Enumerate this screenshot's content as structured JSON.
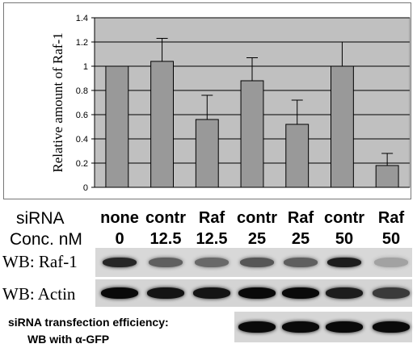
{
  "chart_data": {
    "type": "bar",
    "categories": [
      "none",
      "contr 12.5",
      "Raf 12.5",
      "contr 25",
      "Raf 25",
      "contr 50",
      "Raf 50"
    ],
    "values": [
      1.0,
      1.04,
      0.56,
      0.88,
      0.52,
      1.0,
      0.18
    ],
    "error_upper": [
      1.0,
      1.23,
      0.76,
      1.07,
      0.72,
      1.2,
      0.28
    ],
    "ylabel": "Relative amount of Raf-1",
    "ylim": [
      0,
      1.4
    ],
    "yticks": [
      0,
      0.2,
      0.4,
      0.6,
      0.8,
      1,
      1.2,
      1.4
    ],
    "ytick_labels": [
      "0",
      "0.2",
      "0.4",
      "0.6",
      "0.8",
      "1",
      "1.2",
      "1.4"
    ],
    "grid": true,
    "plot_bg": "#c0c0c0",
    "bar_color": "#999999"
  },
  "lanes": {
    "sirna_label": "siRNA",
    "conc_label": "Conc. nM",
    "sirna": [
      "none",
      "contr",
      "Raf",
      "contr",
      "Raf",
      "contr",
      "Raf"
    ],
    "conc": [
      "0",
      "12.5",
      "12.5",
      "25",
      "25",
      "50",
      "50"
    ]
  },
  "blots": {
    "raf_label": "WB: Raf-1",
    "actin_label": "WB: Actin",
    "raf_intensity": [
      0.85,
      0.55,
      0.5,
      0.6,
      0.55,
      0.9,
      0.2
    ],
    "actin_intensity": [
      1.0,
      0.95,
      0.95,
      1.0,
      1.0,
      0.9,
      0.75
    ],
    "gfp_intensity": [
      1.0,
      1.0,
      1.0,
      1.0
    ],
    "gfp_note_line1": "siRNA transfection efficiency:",
    "gfp_note_line2": "WB with α-GFP"
  }
}
